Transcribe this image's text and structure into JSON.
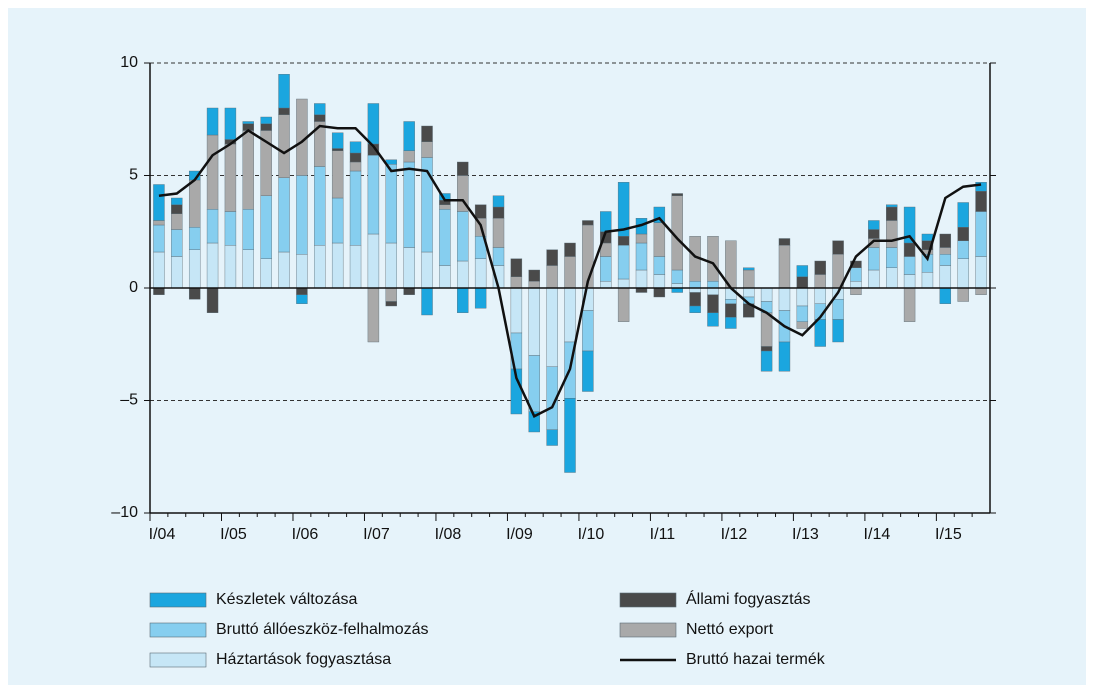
{
  "chart_data": {
    "type": "bar",
    "stacked": true,
    "categories": [
      "I/04",
      null,
      null,
      null,
      "I/05",
      null,
      null,
      null,
      "I/06",
      null,
      null,
      null,
      "I/07",
      null,
      null,
      null,
      "I/08",
      null,
      null,
      null,
      "I/09",
      null,
      null,
      null,
      "I/10",
      null,
      null,
      null,
      "I/11",
      null,
      null,
      null,
      "I/12",
      null,
      null,
      null,
      "I/13",
      null,
      null,
      null,
      "I/14",
      null,
      null,
      null,
      "I/15",
      null,
      null
    ],
    "ylim": [
      -10,
      10
    ],
    "yticks": [
      {
        "value": -10,
        "label": "–10"
      },
      {
        "value": -5,
        "label": "–5"
      },
      0,
      5,
      10
    ],
    "grid": true,
    "series": [
      {
        "name": "Háztartások fogyasztása",
        "color": "#c6e6f6",
        "values": [
          1.6,
          1.4,
          1.7,
          2.0,
          1.9,
          1.7,
          1.3,
          1.6,
          1.5,
          1.9,
          2.0,
          1.9,
          2.4,
          2.0,
          1.8,
          1.6,
          1.0,
          1.2,
          1.3,
          1.0,
          -2.0,
          -3.0,
          -3.5,
          -2.4,
          -1.0,
          0.3,
          0.4,
          0.8,
          0.6,
          0.2,
          -0.2,
          -0.3,
          -0.5,
          -0.4,
          -0.6,
          -1.0,
          -0.8,
          -0.7,
          -0.5,
          0.3,
          0.8,
          0.9,
          0.6,
          0.7,
          1.0,
          1.3,
          1.4
        ]
      },
      {
        "name": "Bruttó állóeszköz-felhalmozás",
        "color": "#86ceef",
        "values": [
          1.2,
          1.2,
          1.0,
          1.5,
          1.5,
          1.8,
          2.8,
          3.3,
          3.5,
          3.5,
          2.0,
          3.3,
          3.5,
          3.5,
          3.8,
          4.2,
          2.5,
          2.2,
          1.0,
          0.8,
          -1.6,
          -2.5,
          -2.8,
          -2.5,
          -1.8,
          1.1,
          1.5,
          1.2,
          0.8,
          0.6,
          0.3,
          0.3,
          -0.2,
          -0.3,
          -0.5,
          -1.4,
          -0.7,
          -0.7,
          -0.9,
          0.6,
          1.0,
          0.9,
          0.8,
          0.8,
          0.5,
          0.8,
          2.0
        ]
      },
      {
        "name": "Nettó export",
        "color": "#a9a9a9",
        "values": [
          0.2,
          0.7,
          2.1,
          3.3,
          3.0,
          3.5,
          2.9,
          2.8,
          3.4,
          2.0,
          2.1,
          0.4,
          -2.4,
          -0.6,
          0.5,
          0.7,
          0.2,
          1.6,
          0.8,
          1.3,
          0.5,
          0.3,
          1.0,
          1.4,
          2.8,
          0.6,
          -1.5,
          0.4,
          1.5,
          3.3,
          2.0,
          2.0,
          2.1,
          0.8,
          -1.5,
          1.9,
          -0.3,
          0.6,
          1.5,
          -0.3,
          0.4,
          1.2,
          -1.5,
          0.2,
          0.3,
          -0.6,
          -0.3
        ]
      },
      {
        "name": "Állami fogyasztás",
        "color": "#4a4a4a",
        "values": [
          -0.3,
          0.4,
          -0.5,
          -1.1,
          0.2,
          0.3,
          0.3,
          0.3,
          -0.3,
          0.3,
          0.1,
          0.4,
          0.5,
          -0.2,
          -0.3,
          0.7,
          0.2,
          0.6,
          0.6,
          0.5,
          0.8,
          0.5,
          0.7,
          0.6,
          0.2,
          0.5,
          0.4,
          -0.2,
          -0.4,
          0.1,
          -0.6,
          -0.8,
          -0.6,
          -0.6,
          -0.2,
          0.3,
          0.5,
          0.6,
          0.6,
          0.3,
          0.4,
          0.6,
          0.6,
          0.4,
          0.6,
          0.6,
          0.9
        ]
      },
      {
        "name": "Készletek változása",
        "color": "#1ba6df",
        "values": [
          1.6,
          0.3,
          0.4,
          1.2,
          1.4,
          0.1,
          0.3,
          1.5,
          -0.4,
          0.5,
          0.7,
          0.5,
          1.8,
          0.2,
          1.3,
          -1.2,
          0.3,
          -1.1,
          -0.9,
          0.5,
          -2.0,
          -0.9,
          -0.7,
          -3.3,
          -1.8,
          0.9,
          2.4,
          0.7,
          0.7,
          -0.2,
          -0.3,
          -0.6,
          -0.5,
          0.1,
          -0.9,
          -1.3,
          0.5,
          -1.2,
          -1.0,
          0.0,
          0.4,
          0.1,
          1.6,
          0.3,
          -0.7,
          1.1,
          0.4
        ]
      },
      {
        "name": "Bruttó hazai termék",
        "type": "line",
        "color": "#111111",
        "values": [
          4.1,
          4.2,
          4.8,
          5.9,
          6.4,
          7.0,
          6.5,
          6.0,
          6.5,
          7.2,
          7.1,
          7.1,
          6.3,
          5.2,
          5.3,
          5.2,
          3.9,
          3.9,
          2.8,
          0.0,
          -4.0,
          -5.7,
          -5.3,
          -3.6,
          0.3,
          2.5,
          2.6,
          2.8,
          3.1,
          2.2,
          1.4,
          1.1,
          0.0,
          -0.7,
          -1.1,
          -1.7,
          -2.1,
          -1.3,
          -0.2,
          1.4,
          2.1,
          2.1,
          2.3,
          1.3,
          4.0,
          4.5,
          4.6
        ]
      }
    ]
  }
}
